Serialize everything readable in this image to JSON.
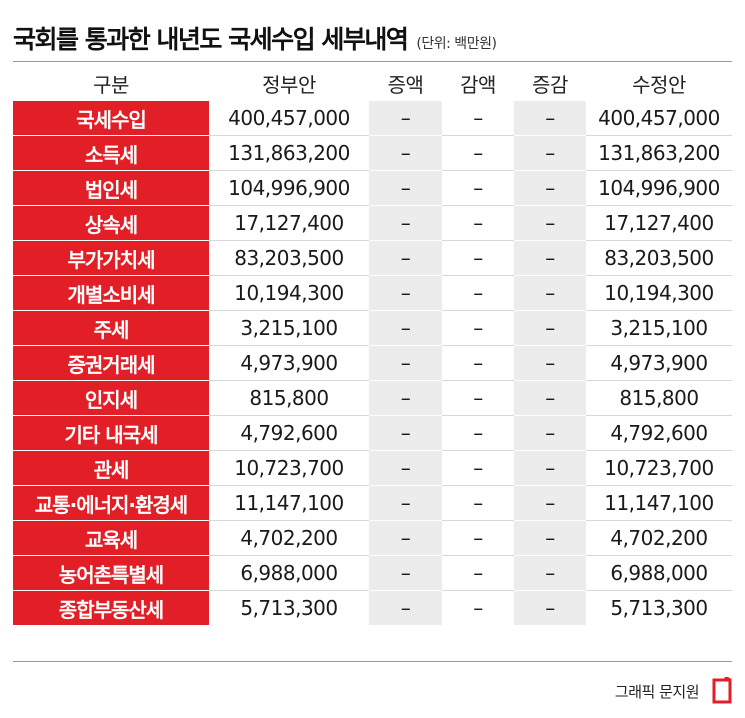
{
  "title": "국회를 통과한 내년도 국세수입 세부내역",
  "unit": "(단위: 백만원)",
  "columns": [
    "구분",
    "정부안",
    "증액",
    "감액",
    "증감",
    "수정안"
  ],
  "rows": [
    {
      "name": "국세수입",
      "gov": "400,457,000",
      "inc": "–",
      "dec": "–",
      "chg": "–",
      "rev": "400,457,000"
    },
    {
      "name": "소득세",
      "gov": "131,863,200",
      "inc": "–",
      "dec": "–",
      "chg": "–",
      "rev": "131,863,200"
    },
    {
      "name": "법인세",
      "gov": "104,996,900",
      "inc": "–",
      "dec": "–",
      "chg": "–",
      "rev": "104,996,900"
    },
    {
      "name": "상속세",
      "gov": "17,127,400",
      "inc": "–",
      "dec": "–",
      "chg": "–",
      "rev": "17,127,400"
    },
    {
      "name": "부가가치세",
      "gov": "83,203,500",
      "inc": "–",
      "dec": "–",
      "chg": "–",
      "rev": "83,203,500"
    },
    {
      "name": "개별소비세",
      "gov": "10,194,300",
      "inc": "–",
      "dec": "–",
      "chg": "–",
      "rev": "10,194,300"
    },
    {
      "name": "주세",
      "gov": "3,215,100",
      "inc": "–",
      "dec": "–",
      "chg": "–",
      "rev": "3,215,100"
    },
    {
      "name": "증권거래세",
      "gov": "4,973,900",
      "inc": "–",
      "dec": "–",
      "chg": "–",
      "rev": "4,973,900"
    },
    {
      "name": "인지세",
      "gov": "815,800",
      "inc": "–",
      "dec": "–",
      "chg": "–",
      "rev": "815,800"
    },
    {
      "name": "기타 내국세",
      "gov": "4,792,600",
      "inc": "–",
      "dec": "–",
      "chg": "–",
      "rev": "4,792,600"
    },
    {
      "name": "관세",
      "gov": "10,723,700",
      "inc": "–",
      "dec": "–",
      "chg": "–",
      "rev": "10,723,700"
    },
    {
      "name": "교통·에너지·환경세",
      "gov": "11,147,100",
      "inc": "–",
      "dec": "–",
      "chg": "–",
      "rev": "11,147,100"
    },
    {
      "name": "교육세",
      "gov": "4,702,200",
      "inc": "–",
      "dec": "–",
      "chg": "–",
      "rev": "4,702,200"
    },
    {
      "name": "농어촌특별세",
      "gov": "6,988,000",
      "inc": "–",
      "dec": "–",
      "chg": "–",
      "rev": "6,988,000"
    },
    {
      "name": "종합부동산세",
      "gov": "5,713,300",
      "inc": "–",
      "dec": "–",
      "chg": "–",
      "rev": "5,713,300"
    }
  ],
  "credit": "그래픽 문지원",
  "colors": {
    "accent": "#e21f26",
    "gray_column": "#ececec"
  }
}
